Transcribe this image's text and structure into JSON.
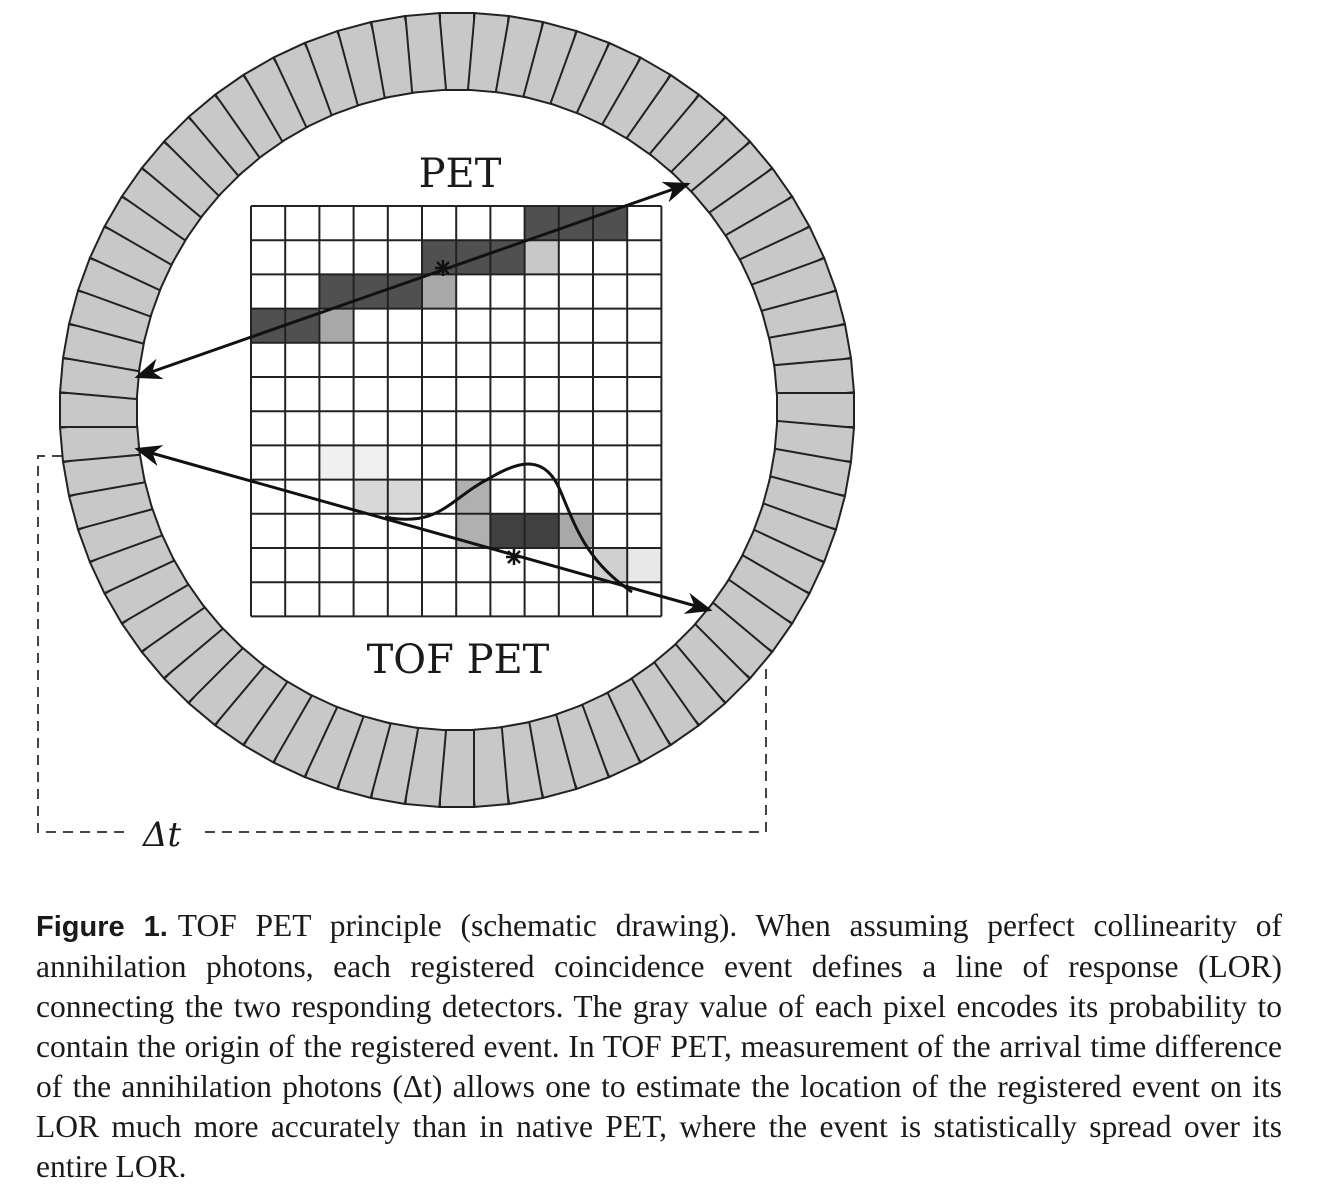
{
  "figure": {
    "pet_label": "PET",
    "tof_pet_label": "TOF PET",
    "delta_t_label": "Δt",
    "detector_ring": {
      "count": 72,
      "fill": "#c8c8c8",
      "stroke": "#222222"
    },
    "pixel_grid": {
      "rows": 12,
      "cols": 12,
      "shaded_cells": [
        {
          "r": 0,
          "c": 8,
          "shade": "#505050"
        },
        {
          "r": 0,
          "c": 9,
          "shade": "#505050"
        },
        {
          "r": 0,
          "c": 10,
          "shade": "#505050"
        },
        {
          "r": 1,
          "c": 5,
          "shade": "#505050"
        },
        {
          "r": 1,
          "c": 6,
          "shade": "#505050"
        },
        {
          "r": 1,
          "c": 7,
          "shade": "#505050"
        },
        {
          "r": 1,
          "c": 8,
          "shade": "#c8c8c8"
        },
        {
          "r": 2,
          "c": 2,
          "shade": "#505050"
        },
        {
          "r": 2,
          "c": 3,
          "shade": "#505050"
        },
        {
          "r": 2,
          "c": 4,
          "shade": "#505050"
        },
        {
          "r": 2,
          "c": 5,
          "shade": "#a8a8a8"
        },
        {
          "r": 3,
          "c": 0,
          "shade": "#505050"
        },
        {
          "r": 3,
          "c": 1,
          "shade": "#505050"
        },
        {
          "r": 3,
          "c": 2,
          "shade": "#a8a8a8"
        },
        {
          "r": 7,
          "c": 2,
          "shade": "#f0f0f0"
        },
        {
          "r": 7,
          "c": 3,
          "shade": "#f0f0f0"
        },
        {
          "r": 8,
          "c": 3,
          "shade": "#d8d8d8"
        },
        {
          "r": 8,
          "c": 4,
          "shade": "#d8d8d8"
        },
        {
          "r": 8,
          "c": 6,
          "shade": "#b0b0b0"
        },
        {
          "r": 9,
          "c": 6,
          "shade": "#b0b0b0"
        },
        {
          "r": 9,
          "c": 7,
          "shade": "#404040"
        },
        {
          "r": 9,
          "c": 8,
          "shade": "#404040"
        },
        {
          "r": 9,
          "c": 9,
          "shade": "#a8a8a8"
        },
        {
          "r": 10,
          "c": 10,
          "shade": "#d0d0d0"
        },
        {
          "r": 10,
          "c": 11,
          "shade": "#e8e8e8"
        }
      ]
    }
  },
  "caption": {
    "label": "Figure 1.",
    "text": "TOF PET principle (schematic drawing). When assuming perfect collinearity of annihilation photons, each registered coincidence event defines a line of response (LOR) connecting the two responding detectors. The gray value of each pixel encodes its probability to contain the origin of the registered event. In TOF PET, measurement of the arrival time difference of the annihilation photons (Δt) allows one to estimate the location of the registered event on its LOR much more accurately than in native PET, where the event is statistically spread over its entire LOR."
  }
}
